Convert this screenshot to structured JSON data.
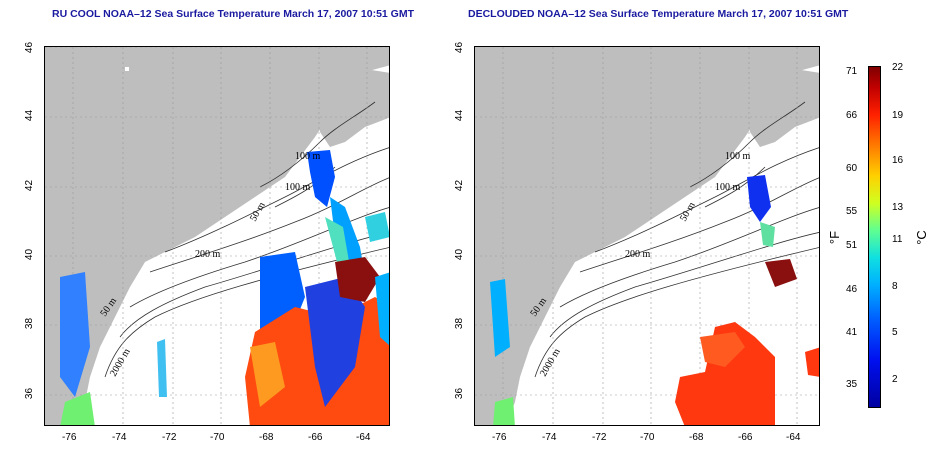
{
  "left_panel": {
    "title": "RU COOL NOAA–12 Sea Surface Temperature March 17, 2007 10:51 GMT",
    "contour_labels": [
      "100 m",
      "100 m",
      "50 m",
      "200 m",
      "50 m",
      "2000 m"
    ]
  },
  "right_panel": {
    "title": "DECLOUDED NOAA–12 Sea Surface Temperature March 17, 2007 10:51 GMT",
    "contour_labels": [
      "100 m",
      "100 m",
      "50 m",
      "200 m",
      "50 m",
      "2000 m"
    ]
  },
  "x_ticks": [
    "-76",
    "-74",
    "-72",
    "-70",
    "-68",
    "-66",
    "-64"
  ],
  "y_ticks": [
    "46",
    "44",
    "42",
    "40",
    "38",
    "36"
  ],
  "colorbar": {
    "fahrenheit_ticks": [
      "71",
      "66",
      "60",
      "55",
      "51",
      "46",
      "41",
      "35"
    ],
    "celsius_ticks": [
      "22",
      "19",
      "16",
      "13",
      "11",
      "8",
      "5",
      "2"
    ],
    "fahrenheit_unit": "°F",
    "celsius_unit": "°C"
  },
  "colors": {
    "land": "#bebebe",
    "ocean_bg": "#ffffff",
    "title": "#1a1aa0",
    "contour": "#303030"
  }
}
